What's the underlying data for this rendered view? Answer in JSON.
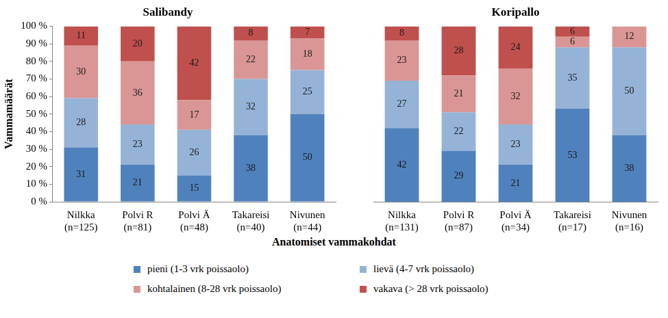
{
  "chart_data": [
    {
      "type": "bar",
      "title": "Salibandy",
      "categories": [
        "Nilkka\n(n=125)",
        "Polvi R\n(n=81)",
        "Polvi Ä\n(n=48)",
        "Takareisi\n(n=40)",
        "Nivunen\n(n=44)"
      ],
      "series": [
        {
          "name": "pieni (1-3 vrk poissaolo)",
          "color": "#4f81bd",
          "values": [
            31,
            21,
            15,
            38,
            50
          ]
        },
        {
          "name": "lievä (4-7 vrk poissaolo)",
          "color": "#95b3d7",
          "values": [
            28,
            23,
            26,
            32,
            25
          ]
        },
        {
          "name": "kohtalainen (8-28 vrk poissaolo)",
          "color": "#d99694",
          "values": [
            30,
            36,
            17,
            22,
            18
          ]
        },
        {
          "name": "vakava (> 28 vrk poissaolo)",
          "color": "#c0504d",
          "values": [
            11,
            20,
            42,
            8,
            7
          ]
        }
      ],
      "ylabel": "Vammamäärät",
      "xlabel": "Anatomiset vammakohdat",
      "ylim": [
        0,
        100
      ],
      "yticks": [
        {
          "value": 0,
          "label": "0 %"
        },
        {
          "value": 10,
          "label": "10 %"
        },
        {
          "value": 20,
          "label": "20 %"
        },
        {
          "value": 30,
          "label": "30 %"
        },
        {
          "value": 40,
          "label": "40 %"
        },
        {
          "value": 50,
          "label": "50 %"
        },
        {
          "value": 60,
          "label": "60 %"
        },
        {
          "value": 70,
          "label": "70 %"
        },
        {
          "value": 80,
          "label": "80 %"
        },
        {
          "value": 90,
          "label": "90 %"
        },
        {
          "value": 100,
          "label": "100 %"
        }
      ],
      "stacked": true,
      "data_labels": true,
      "grid": false,
      "legend": "bottom"
    },
    {
      "type": "bar",
      "title": "Koripallo",
      "categories": [
        "Nilkka\n(n=131)",
        "Polvi R\n(n=87)",
        "Polvi Ä\n(n=34)",
        "Takareisi\n(n=17)",
        "Nivunen\n(n=16)"
      ],
      "series": [
        {
          "name": "pieni (1-3 vrk poissaolo)",
          "color": "#4f81bd",
          "values": [
            42,
            29,
            21,
            53,
            38
          ]
        },
        {
          "name": "lievä (4-7 vrk poissaolo)",
          "color": "#95b3d7",
          "values": [
            27,
            22,
            23,
            35,
            50
          ]
        },
        {
          "name": "kohtalainen (8-28 vrk poissaolo)",
          "color": "#d99694",
          "values": [
            23,
            21,
            32,
            6,
            12
          ]
        },
        {
          "name": "vakava (> 28 vrk poissaolo)",
          "color": "#c0504d",
          "values": [
            8,
            28,
            24,
            6,
            null
          ]
        }
      ],
      "ylim": [
        0,
        100
      ],
      "stacked": true,
      "data_labels": true,
      "grid": false,
      "tick_labels": "x"
    }
  ]
}
